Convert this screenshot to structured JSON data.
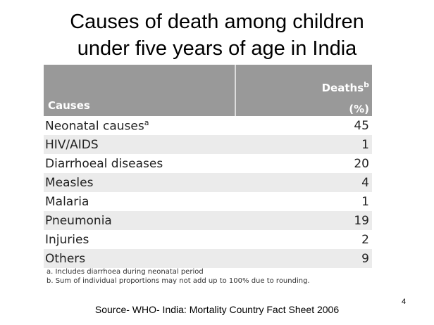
{
  "title": [
    "Causes of death among children",
    "under five years of age in India"
  ],
  "table": {
    "header": {
      "causes": "Causes",
      "deaths": "Deaths",
      "deaths_sup": "b",
      "unit": "(%)"
    },
    "rows": [
      {
        "cause": "Neonatal causes",
        "sup": "a",
        "value": "45"
      },
      {
        "cause": "HIV/AIDS",
        "value": "1"
      },
      {
        "cause": "Diarrhoeal diseases",
        "value": "20"
      },
      {
        "cause": "Measles",
        "value": "4"
      },
      {
        "cause": "Malaria",
        "value": "1"
      },
      {
        "cause": "Pneumonia",
        "value": "19"
      },
      {
        "cause": "Injuries",
        "value": "2"
      },
      {
        "cause": "Others",
        "value": "9"
      }
    ]
  },
  "footnotes": [
    "a.  Includes diarrhoea during neonatal period",
    "b.  Sum of individual proportions may not add up to 100% due to rounding."
  ],
  "source": "Source- WHO- India: Mortality Country Fact Sheet 2006",
  "page_number": "4"
}
